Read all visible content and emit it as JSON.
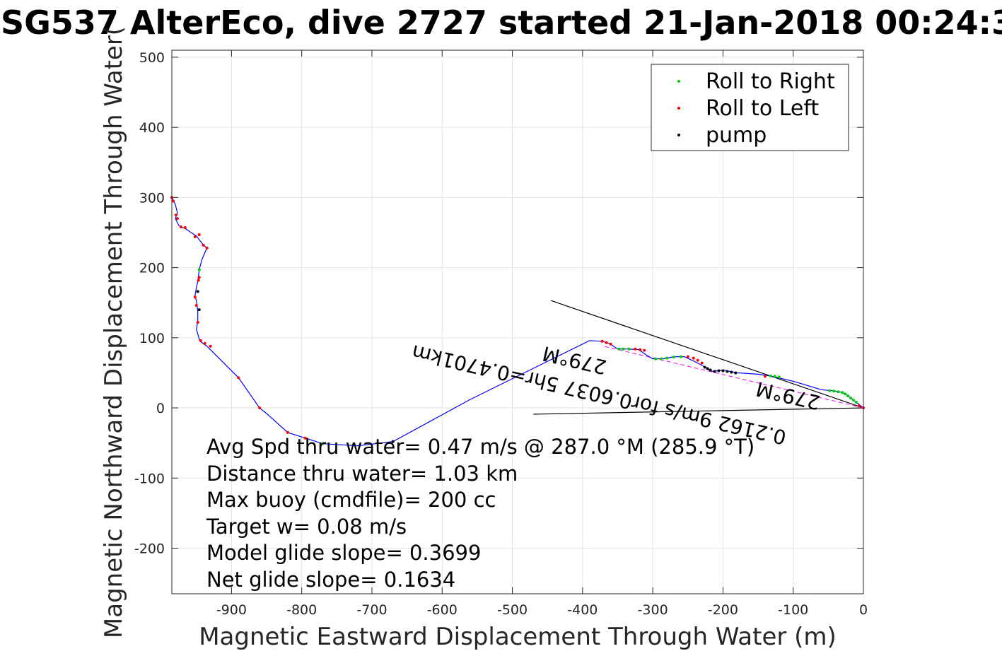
{
  "chart_data": {
    "type": "line",
    "title": "SG537 AlterEco, dive 2727 started 21-Jan-2018 00:24:3",
    "xlabel": "Magnetic Eastward Displacement Through Water (m)",
    "ylabel": "Magnetic Northward Displacement Through Water(",
    "xlim": [
      -985,
      0
    ],
    "ylim": [
      -265,
      510
    ],
    "xticks": [
      -900,
      -800,
      -700,
      -600,
      -500,
      -400,
      -300,
      -200,
      -100,
      0
    ],
    "yticks": [
      -200,
      -100,
      0,
      100,
      200,
      300,
      400,
      500
    ],
    "grid": true,
    "legend_position": "top-right",
    "legend": [
      {
        "label": "Roll to Right",
        "color": "#00d000"
      },
      {
        "label": "Roll to Left",
        "color": "#ff0000"
      },
      {
        "label": "pump",
        "color": "#000000"
      }
    ],
    "track_color": "#0000ff",
    "series": [
      {
        "name": "track",
        "points": [
          [
            0,
            0
          ],
          [
            -10,
            8
          ],
          [
            -20,
            16
          ],
          [
            -30,
            22
          ],
          [
            -40,
            24
          ],
          [
            -60,
            26
          ],
          [
            -100,
            38
          ],
          [
            -130,
            45
          ],
          [
            -150,
            48
          ],
          [
            -180,
            50
          ],
          [
            -200,
            54
          ],
          [
            -215,
            52
          ],
          [
            -225,
            58
          ],
          [
            -240,
            66
          ],
          [
            -255,
            73
          ],
          [
            -270,
            73
          ],
          [
            -285,
            70
          ],
          [
            -300,
            70
          ],
          [
            -310,
            76
          ],
          [
            -320,
            83
          ],
          [
            -335,
            84
          ],
          [
            -350,
            84
          ],
          [
            -362,
            92
          ],
          [
            -372,
            95
          ],
          [
            -390,
            96
          ],
          [
            -560,
            12
          ],
          [
            -670,
            -48
          ],
          [
            -720,
            -54
          ],
          [
            -770,
            -51
          ],
          [
            -820,
            -35
          ],
          [
            -850,
            -8
          ],
          [
            -860,
            0
          ],
          [
            -890,
            43
          ],
          [
            -935,
            88
          ],
          [
            -945,
            95
          ],
          [
            -950,
            112
          ],
          [
            -948,
            124
          ],
          [
            -948,
            138
          ],
          [
            -950,
            152
          ],
          [
            -952,
            160
          ],
          [
            -950,
            172
          ],
          [
            -948,
            180
          ],
          [
            -946,
            197
          ],
          [
            -942,
            212
          ],
          [
            -935,
            228
          ],
          [
            -940,
            232
          ],
          [
            -950,
            245
          ],
          [
            -965,
            255
          ],
          [
            -975,
            260
          ],
          [
            -980,
            270
          ],
          [
            -977,
            278
          ],
          [
            -980,
            290
          ],
          [
            -985,
            300
          ]
        ]
      },
      {
        "name": "Roll to Left",
        "points": [
          [
            0,
            0
          ],
          [
            -6,
            3
          ],
          [
            -372,
            95
          ],
          [
            -366,
            93
          ],
          [
            -360,
            91
          ],
          [
            -325,
            84
          ],
          [
            -318,
            83
          ],
          [
            -312,
            82
          ],
          [
            -250,
            73
          ],
          [
            -242,
            71
          ],
          [
            -236,
            68
          ],
          [
            -230,
            64
          ],
          [
            -930,
            88
          ],
          [
            -938,
            92
          ],
          [
            -944,
            96
          ],
          [
            -948,
            122
          ],
          [
            -950,
            146
          ],
          [
            -952,
            158
          ],
          [
            -947,
            182
          ],
          [
            -946,
            186
          ],
          [
            -935,
            228
          ],
          [
            -940,
            232
          ],
          [
            -946,
            247
          ],
          [
            -952,
            244
          ],
          [
            -966,
            257
          ],
          [
            -972,
            258
          ],
          [
            -977,
            270
          ],
          [
            -979,
            275
          ],
          [
            -983,
            295
          ],
          [
            -985,
            300
          ],
          [
            -860,
            0
          ],
          [
            -890,
            43
          ],
          [
            -820,
            -35
          ],
          [
            -795,
            -43
          ],
          [
            -140,
            45
          ]
        ]
      },
      {
        "name": "Roll to Right",
        "points": [
          [
            -10,
            8
          ],
          [
            -14,
            11
          ],
          [
            -18,
            14
          ],
          [
            -22,
            17
          ],
          [
            -26,
            20
          ],
          [
            -30,
            22
          ],
          [
            -36,
            23
          ],
          [
            -42,
            24
          ],
          [
            -48,
            24.5
          ],
          [
            -120,
            44
          ],
          [
            -126,
            45
          ],
          [
            -132,
            45.5
          ],
          [
            -260,
            73
          ],
          [
            -270,
            72.5
          ],
          [
            -280,
            71
          ],
          [
            -288,
            70
          ],
          [
            -296,
            70
          ],
          [
            -334,
            84
          ],
          [
            -342,
            84
          ],
          [
            -348,
            84
          ],
          [
            -946,
            197
          ],
          [
            -770,
            -51
          ]
        ]
      },
      {
        "name": "pump",
        "points": [
          [
            -182,
            50
          ],
          [
            -188,
            51
          ],
          [
            -194,
            52
          ],
          [
            -200,
            53
          ],
          [
            -206,
            53
          ],
          [
            -212,
            52
          ],
          [
            -218,
            54
          ],
          [
            -222,
            56
          ],
          [
            -226,
            58
          ],
          [
            -946,
            140
          ],
          [
            -948,
            166
          ],
          [
            -670,
            -48
          ]
        ]
      }
    ],
    "reference_lines": [
      {
        "from": [
          0,
          0
        ],
        "to": [
          -445,
          153
        ]
      },
      {
        "from": [
          0,
          0
        ],
        "to": [
          -470,
          -9
        ]
      },
      {
        "from": [
          0,
          0
        ],
        "to": [
          -370,
          88
        ],
        "style": "magenta dashed"
      }
    ],
    "annotations": {
      "summary_lines": [
        "Avg Spd thru water=  0.47 m/s @ 287.0 °M (285.9 °T)",
        "Distance thru water=  1.03 km",
        "Max buoy (cmdfile)= 200 cc",
        "Target w= 0.08 m/s",
        "Model glide slope= 0.3699",
        "Net glide slope= 0.1634"
      ],
      "rotated_1": "0.2162 9m/s for0.6037 5hr=0.4701km",
      "rotated_2": "279°M",
      "rotated_3": "279°M"
    }
  }
}
